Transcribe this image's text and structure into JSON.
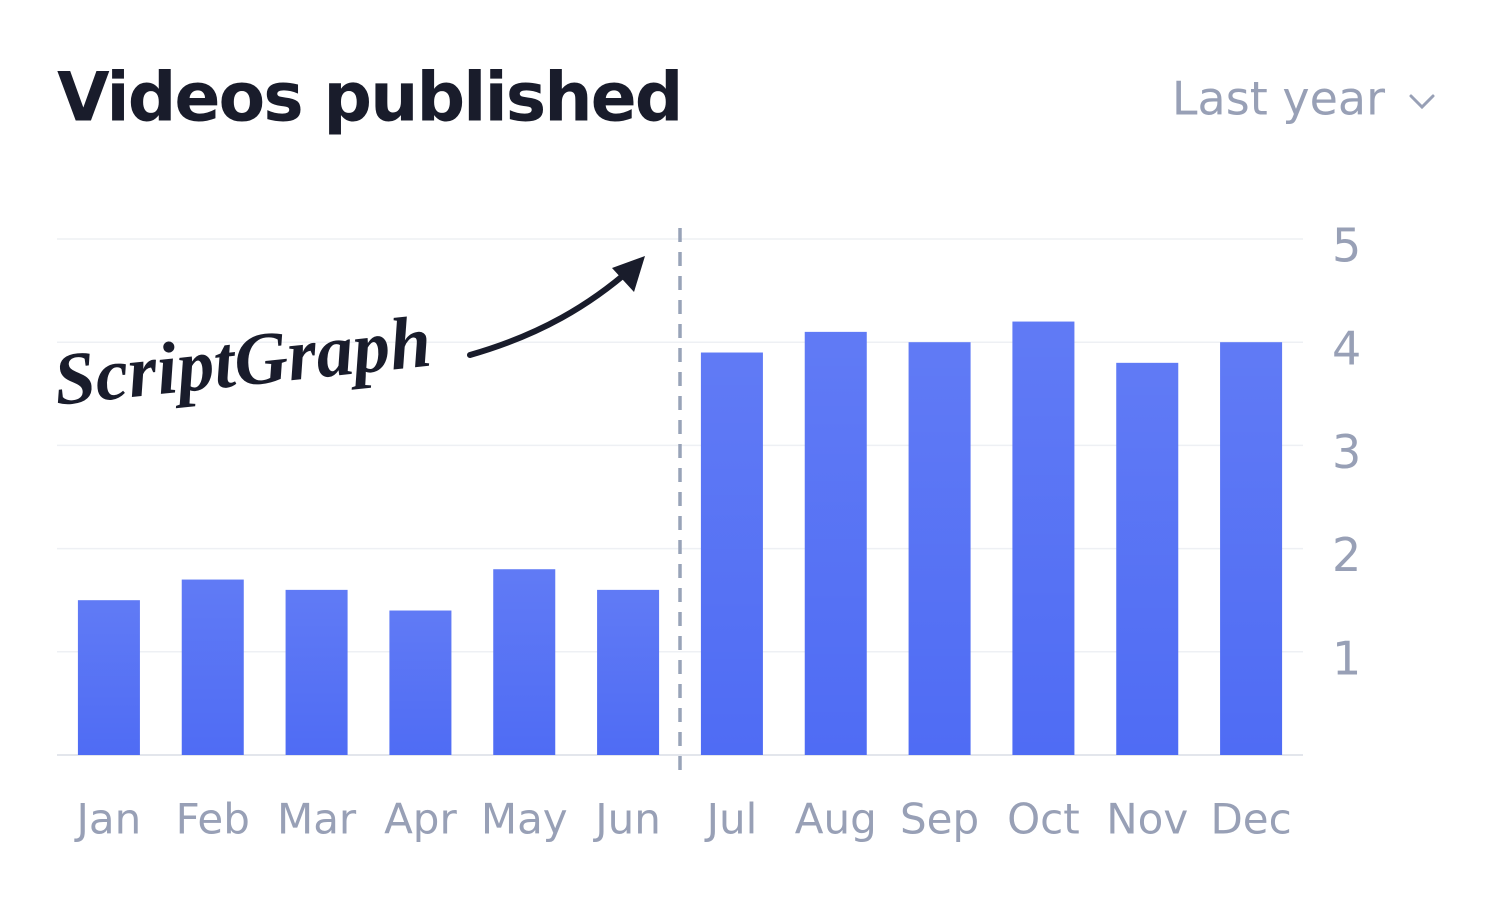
{
  "chart_data": {
    "type": "bar",
    "title": "Videos published",
    "filter": "Last year",
    "annotation": "ScriptGraph",
    "categories": [
      "Jan",
      "Feb",
      "Mar",
      "Apr",
      "May",
      "Jun",
      "Jul",
      "Aug",
      "Sep",
      "Oct",
      "Nov",
      "Dec"
    ],
    "values": [
      1.5,
      1.7,
      1.6,
      1.4,
      1.8,
      1.6,
      3.9,
      4.1,
      4.0,
      4.2,
      3.8,
      4.0
    ],
    "color": "#4f6cf4",
    "ylim": [
      0,
      5
    ],
    "yticks": [
      1,
      2,
      3,
      4,
      5
    ],
    "grid": true
  }
}
